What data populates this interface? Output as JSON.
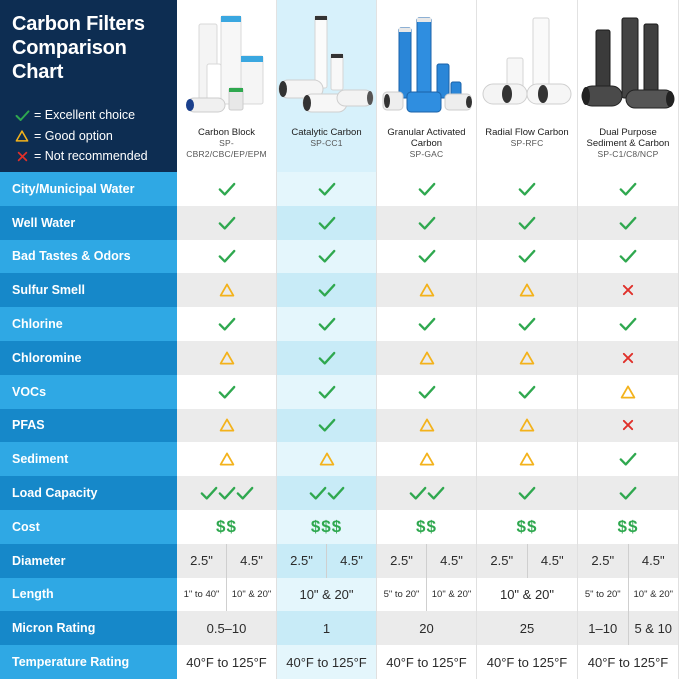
{
  "title": "Carbon Filters Comparison Chart",
  "title_lines": [
    "Carbon Filters",
    "Comparison",
    "Chart"
  ],
  "legend": [
    {
      "icon": "check",
      "label": "= Excellent choice"
    },
    {
      "icon": "triangle",
      "label": "= Good option"
    },
    {
      "icon": "x",
      "label": "= Not recommended"
    }
  ],
  "colors": {
    "check": "#2fa84f",
    "triangle": "#f3b21b",
    "x": "#e0302a",
    "navy": "#0d2d52"
  },
  "filters": [
    {
      "name": "Carbon Block",
      "code": "SP-CBR2/CBC/EP/EPM",
      "highlight": false
    },
    {
      "name": "Catalytic Carbon",
      "code": "SP-CC1",
      "highlight": true
    },
    {
      "name": "Granular Activated Carbon",
      "code": "SP-GAC",
      "highlight": false
    },
    {
      "name": "Radial Flow Carbon",
      "code": "SP-RFC",
      "highlight": false
    },
    {
      "name": "Dual Purpose Sediment & Carbon",
      "code": "SP-C1/C8/NCP",
      "highlight": false
    }
  ],
  "rows": [
    {
      "label": "City/Municipal Water",
      "values": [
        "check",
        "check",
        "check",
        "check",
        "check"
      ]
    },
    {
      "label": "Well Water",
      "values": [
        "check",
        "check",
        "check",
        "check",
        "check"
      ]
    },
    {
      "label": "Bad Tastes & Odors",
      "values": [
        "check",
        "check",
        "check",
        "check",
        "check"
      ]
    },
    {
      "label": "Sulfur Smell",
      "values": [
        "triangle",
        "check",
        "triangle",
        "triangle",
        "x"
      ]
    },
    {
      "label": "Chlorine",
      "values": [
        "check",
        "check",
        "check",
        "check",
        "check"
      ]
    },
    {
      "label": "Chloromine",
      "values": [
        "triangle",
        "check",
        "triangle",
        "triangle",
        "x"
      ]
    },
    {
      "label": "VOCs",
      "values": [
        "check",
        "check",
        "check",
        "check",
        "triangle"
      ]
    },
    {
      "label": "PFAS",
      "values": [
        "triangle",
        "check",
        "triangle",
        "triangle",
        "x"
      ]
    },
    {
      "label": "Sediment",
      "values": [
        "triangle",
        "triangle",
        "triangle",
        "triangle",
        "check"
      ]
    },
    {
      "label": "Load Capacity",
      "values": [
        "check3",
        "check2",
        "check2",
        "check",
        "check"
      ]
    },
    {
      "label": "Cost",
      "values": [
        "$$",
        "$$$",
        "$$",
        "$$",
        "$$"
      ]
    },
    {
      "label": "Diameter",
      "values": [
        [
          "2.5\"",
          "4.5\""
        ],
        [
          "2.5\"",
          "4.5\""
        ],
        [
          "2.5\"",
          "4.5\""
        ],
        [
          "2.5\"",
          "4.5\""
        ],
        [
          "2.5\"",
          "4.5\""
        ]
      ]
    },
    {
      "label": "Length",
      "values": [
        [
          "1\" to 40\"",
          "10\" & 20\""
        ],
        "10\" & 20\"",
        [
          "5\" to 20\"",
          "10\" & 20\""
        ],
        "10\" & 20\"",
        [
          "5\" to 20\"",
          "10\" & 20\""
        ]
      ]
    },
    {
      "label": "Micron Rating",
      "values": [
        "0.5–10",
        "1",
        "20",
        "25",
        [
          "1–10",
          "5 & 10"
        ]
      ]
    },
    {
      "label": "Temperature Rating",
      "values": [
        "40°F to 125°F",
        "40°F to 125°F",
        "40°F to 125°F",
        "40°F to 125°F",
        "40°F to 125°F"
      ]
    }
  ]
}
